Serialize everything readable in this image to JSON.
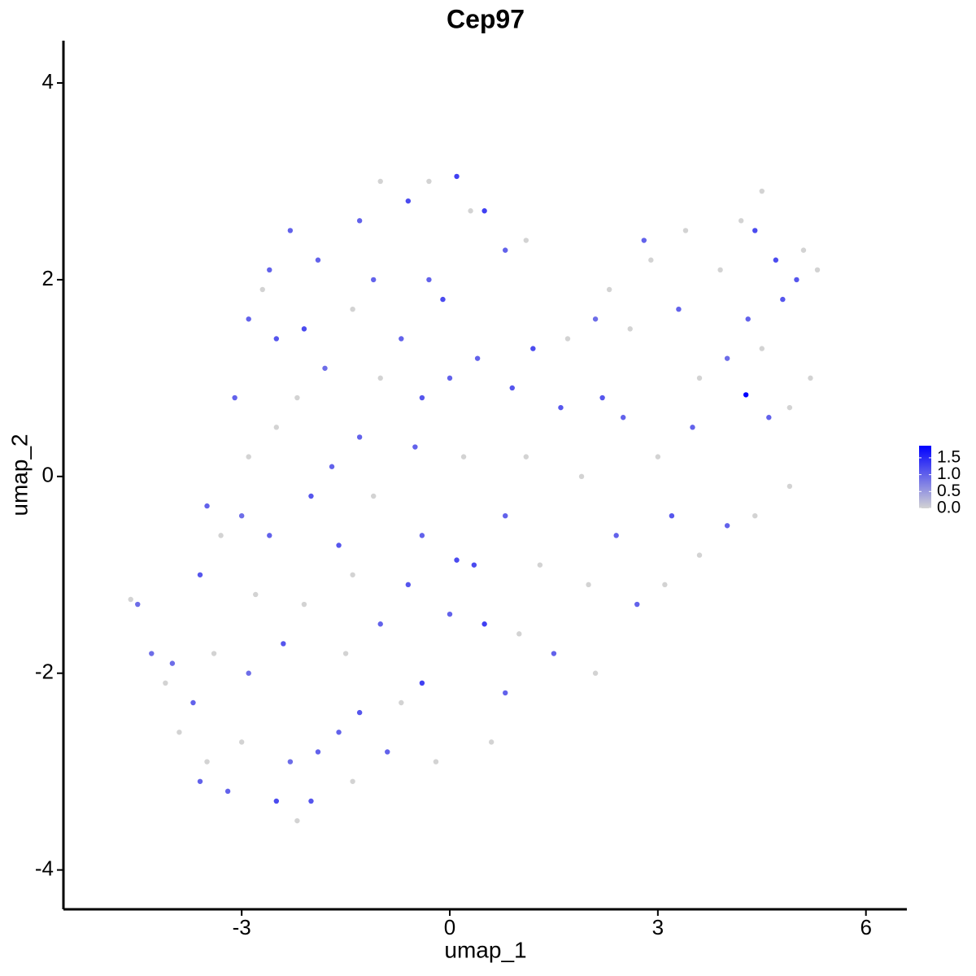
{
  "chart_data": {
    "type": "scatter",
    "title": "Cep97",
    "x_label": "umap_1",
    "y_label": "umap_2",
    "xlim": [
      -5.57,
      6.59
    ],
    "ylim": [
      -4.4,
      4.43
    ],
    "xticks": [
      -3,
      0,
      3,
      6
    ],
    "yticks": [
      -4,
      -2,
      0,
      2,
      4
    ],
    "grid": false,
    "color_low": "#d3d3d3",
    "color_high": "#0000ff",
    "clim": [
      0,
      1.86
    ],
    "cticks": [
      {
        "value": 0,
        "label": "0.0"
      },
      {
        "value": 0.5,
        "label": "0.5"
      },
      {
        "value": 1,
        "label": "1.0"
      },
      {
        "value": 1.5,
        "label": "1.5"
      }
    ],
    "x": [
      -4.6,
      -4.5,
      -4.3,
      -4.1,
      -4.0,
      -3.9,
      -3.7,
      -3.6,
      -3.5,
      -3.4,
      -3.6,
      -3.5,
      -3.3,
      -3.2,
      -3.0,
      -2.9,
      -2.8,
      -3.0,
      -2.9,
      -3.1,
      -2.9,
      -2.7,
      -2.6,
      -2.5,
      -2.5,
      -2.6,
      -2.4,
      -2.5,
      -2.3,
      -2.2,
      -2.0,
      -1.9,
      -2.1,
      -2.0,
      -2.2,
      -2.1,
      -2.3,
      -1.9,
      -1.8,
      -1.7,
      -1.6,
      -1.5,
      -1.6,
      -1.4,
      -1.3,
      -1.4,
      -1.3,
      -1.4,
      -1.3,
      -1.0,
      -1.1,
      -1.0,
      -1.1,
      -1.0,
      -0.9,
      -0.7,
      -0.6,
      -0.5,
      -0.7,
      -0.6,
      -0.3,
      -0.3,
      -0.4,
      -0.4,
      -0.4,
      -0.2,
      0.0,
      0.1,
      0.2,
      0.0,
      -0.1,
      0.1,
      0.3,
      0.5,
      0.4,
      0.35,
      0.5,
      0.6,
      0.8,
      0.8,
      0.9,
      0.8,
      1.1,
      1.2,
      1.1,
      1.0,
      1.3,
      1.5,
      1.6,
      1.7,
      1.9,
      2.0,
      2.1,
      2.2,
      2.1,
      2.3,
      2.5,
      2.4,
      2.6,
      2.8,
      2.7,
      2.9,
      3.0,
      3.1,
      3.2,
      3.3,
      3.4,
      3.5,
      3.6,
      3.6,
      3.9,
      4.0,
      4.0,
      4.2,
      4.27,
      4.3,
      4.4,
      4.5,
      4.5,
      4.6,
      4.7,
      4.8,
      4.9,
      5.0,
      5.1,
      5.2,
      5.3,
      4.9,
      4.4
    ],
    "y": [
      -1.25,
      -1.3,
      -1.8,
      -2.1,
      -1.9,
      -2.6,
      -2.3,
      -3.1,
      -2.9,
      -1.8,
      -1.0,
      -0.3,
      -0.6,
      -3.2,
      -2.7,
      -2.0,
      -1.2,
      -0.4,
      0.2,
      0.8,
      1.6,
      1.9,
      2.1,
      1.4,
      0.5,
      -0.6,
      -1.7,
      -3.3,
      -2.9,
      -3.5,
      -3.3,
      -2.8,
      -1.3,
      -0.2,
      0.8,
      1.5,
      2.5,
      2.2,
      1.1,
      0.1,
      -0.7,
      -1.8,
      -2.6,
      -3.1,
      -2.4,
      -1.0,
      0.4,
      1.7,
      2.6,
      3.0,
      2.0,
      1.0,
      -0.2,
      -1.5,
      -2.8,
      -2.3,
      -1.1,
      0.3,
      1.4,
      2.8,
      3.0,
      2.0,
      0.8,
      -0.6,
      -2.1,
      -2.9,
      -1.4,
      -0.85,
      0.2,
      1.0,
      1.8,
      3.05,
      2.7,
      2.7,
      1.2,
      -0.9,
      -1.5,
      -2.7,
      -2.2,
      -0.4,
      0.9,
      2.3,
      2.4,
      1.3,
      0.2,
      -1.6,
      -0.9,
      -1.8,
      0.7,
      1.4,
      0.0,
      -1.1,
      -2.0,
      0.8,
      1.6,
      1.9,
      0.6,
      -0.6,
      1.5,
      2.4,
      -1.3,
      2.2,
      0.2,
      -1.1,
      -0.4,
      1.7,
      2.5,
      0.5,
      1.0,
      -0.8,
      2.1,
      1.2,
      -0.5,
      2.6,
      0.83,
      1.6,
      2.5,
      2.9,
      1.3,
      0.6,
      2.2,
      1.8,
      0.7,
      2.0,
      2.3,
      1.0,
      2.1,
      -0.1,
      -0.4
    ],
    "values": [
      0,
      0.9,
      0.9,
      0,
      0.9,
      0,
      1.0,
      1.0,
      0,
      0,
      1.1,
      1.0,
      0,
      1.0,
      0,
      0.9,
      0,
      0.9,
      0,
      1.0,
      1.0,
      0,
      1.0,
      1.1,
      0,
      1.0,
      1.1,
      1.2,
      0.9,
      0,
      1.1,
      1.0,
      0,
      1.1,
      0,
      1.2,
      1.0,
      1.0,
      0.9,
      1.0,
      1.1,
      0,
      1.0,
      0,
      1.1,
      0,
      1.0,
      0,
      1.0,
      0,
      1.0,
      0,
      0,
      1.0,
      1.0,
      0,
      1.1,
      1.0,
      1.0,
      1.2,
      0,
      1.0,
      1.1,
      1.0,
      1.3,
      0,
      1.0,
      1.2,
      0,
      1.0,
      1.2,
      1.3,
      0,
      1.3,
      1.0,
      1.2,
      1.3,
      0,
      1.0,
      1.0,
      1.1,
      1.0,
      0,
      1.2,
      0,
      0,
      0,
      1.0,
      1.1,
      0,
      0,
      0,
      0,
      1.1,
      0.9,
      0,
      1.0,
      1.0,
      0,
      1.0,
      1.0,
      0,
      0,
      0,
      1.1,
      1.0,
      0,
      1.0,
      0,
      0,
      0,
      0.9,
      1.0,
      0,
      1.86,
      1.0,
      1.2,
      0,
      0,
      1.0,
      1.2,
      1.1,
      0,
      1.1,
      0,
      0,
      0,
      0,
      0
    ]
  }
}
